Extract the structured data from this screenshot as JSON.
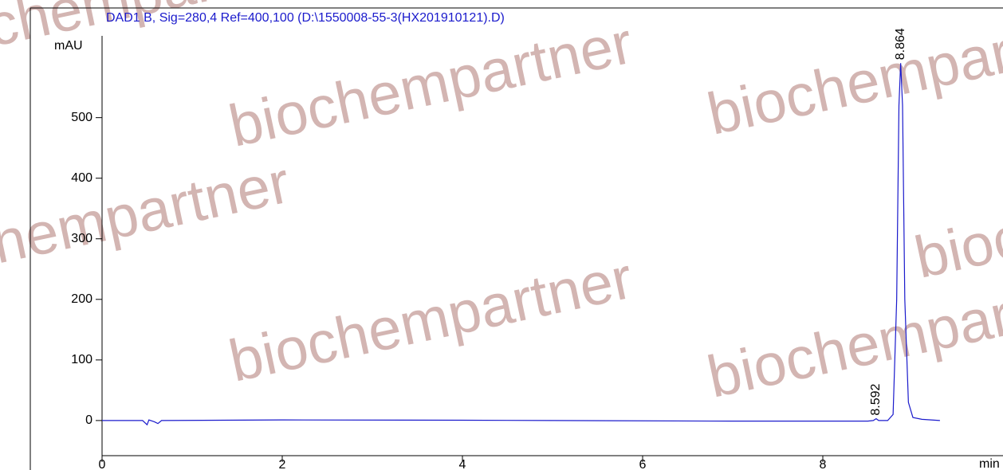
{
  "chart_data": {
    "type": "line",
    "title": "DAD1 B, Sig=280,4 Ref=400,100 (D:\\1550008-55-3(HX201910121).D)",
    "y_label": "mAU",
    "x_label": "min",
    "watermark": "biochempartner",
    "x": [
      0,
      0.45,
      0.5,
      0.52,
      0.58,
      0.62,
      0.66,
      2,
      4,
      5,
      7,
      8.5,
      8.56,
      8.592,
      8.62,
      8.72,
      8.78,
      8.82,
      8.845,
      8.864,
      8.885,
      8.91,
      8.95,
      9.0,
      9.1,
      9.3
    ],
    "series": [
      {
        "name": "DAD1 B",
        "color": "#1a1acc",
        "values": [
          0,
          0,
          -7,
          1,
          -2,
          -5,
          0,
          1,
          0.5,
          0,
          -1,
          -1,
          0,
          3,
          0,
          0,
          10,
          200,
          520,
          590,
          520,
          200,
          30,
          5,
          2,
          0
        ]
      }
    ],
    "annotations": [
      {
        "x": 8.592,
        "y": 3,
        "label": "8.592"
      },
      {
        "x": 8.864,
        "y": 590,
        "label": "8.864"
      }
    ],
    "xlim": [
      0,
      10
    ],
    "xticks": [
      0,
      2,
      4,
      6,
      8
    ],
    "ylim": [
      -58,
      635
    ],
    "yticks": [
      0,
      100,
      200,
      300,
      400,
      500
    ],
    "grid": false
  }
}
